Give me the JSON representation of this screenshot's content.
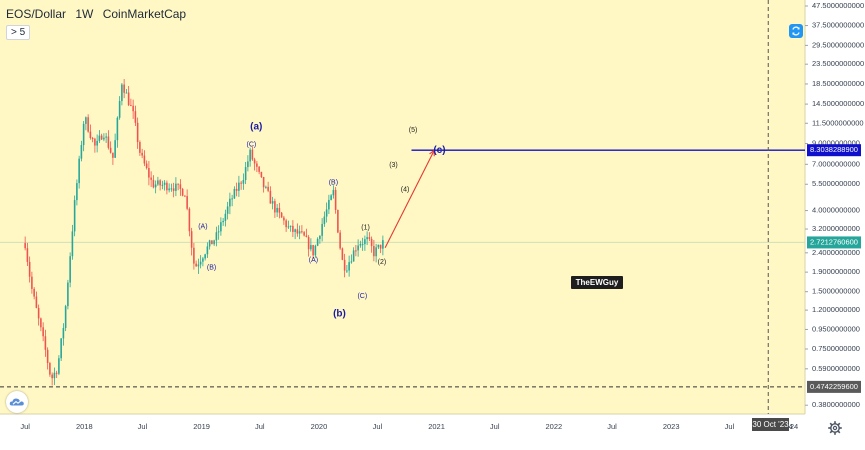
{
  "header": {
    "symbol": "EOS/Dollar",
    "interval": "1W",
    "source": "CoinMarketCap",
    "interval_control": "> 5"
  },
  "colors": {
    "background": "#fff8c4",
    "candle_up": "#26a69a",
    "candle_down": "#ef5350",
    "target_line": "#1010cc",
    "projection_arrow": "#e53935",
    "wave_label": "#1a1aa6",
    "current_price_tag": "#26a69a",
    "target_price_tag": "#1010cc",
    "low_price_tag": "#5a5a5a"
  },
  "icons": {
    "sync": "sync-icon",
    "cloud": "cloud-icon",
    "settings": "gear-icon"
  },
  "chart_data": {
    "type": "candlestick",
    "scale": "log",
    "ylim": [
      0.35,
      47.5
    ],
    "xlim": [
      "2017-06-15",
      "2024-01-15"
    ],
    "x_tick_labels": [
      "Jul",
      "2018",
      "Jul",
      "2019",
      "Jul",
      "2020",
      "Jul",
      "2021",
      "Jul",
      "2022",
      "Jul",
      "2023",
      "Jul",
      "24"
    ],
    "x_tick_dates": [
      "2017-07-01",
      "2018-01-01",
      "2018-07-01",
      "2019-01-01",
      "2019-07-01",
      "2020-01-01",
      "2020-07-01",
      "2021-01-01",
      "2021-07-01",
      "2022-01-01",
      "2022-07-01",
      "2023-01-01",
      "2023-07-01",
      "2024-01-01"
    ],
    "y_tick_labels": [
      "47.5000000000",
      "37.5000000000",
      "29.5000000000",
      "23.5000000000",
      "18.5000000000",
      "14.5000000000",
      "11.5000000000",
      "9.0000000000",
      "7.0000000000",
      "5.5000000000",
      "4.0000000000",
      "3.2000000000",
      "2.4000000000",
      "1.9000000000",
      "1.5000000000",
      "1.2000000000",
      "0.9500000000",
      "0.7500000000",
      "0.5900000000",
      "0.3800000000"
    ],
    "y_tick_values": [
      47.5,
      37.5,
      29.5,
      23.5,
      18.5,
      14.5,
      11.5,
      9.0,
      7.0,
      5.5,
      4.0,
      3.2,
      2.4,
      1.9,
      1.5,
      1.2,
      0.95,
      0.75,
      0.59,
      0.38
    ],
    "price_anchors": [
      [
        "2017-07-01",
        2.7
      ],
      [
        "2017-07-20",
        1.6
      ],
      [
        "2017-08-10",
        1.1
      ],
      [
        "2017-09-01",
        0.75
      ],
      [
        "2017-09-20",
        0.52
      ],
      [
        "2017-10-10",
        0.6
      ],
      [
        "2017-11-01",
        1.1
      ],
      [
        "2017-12-01",
        4.2
      ],
      [
        "2018-01-01",
        12.5
      ],
      [
        "2018-02-05",
        8.5
      ],
      [
        "2018-03-01",
        10.5
      ],
      [
        "2018-04-01",
        7.5
      ],
      [
        "2018-04-28",
        19.0
      ],
      [
        "2018-06-01",
        13.0
      ],
      [
        "2018-06-25",
        7.8
      ],
      [
        "2018-08-01",
        5.5
      ],
      [
        "2018-10-01",
        5.4
      ],
      [
        "2018-11-10",
        5.0
      ],
      [
        "2018-12-10",
        2.0
      ],
      [
        "2019-01-15",
        2.5
      ],
      [
        "2019-02-15",
        2.9
      ],
      [
        "2019-04-01",
        4.5
      ],
      [
        "2019-05-10",
        6.0
      ],
      [
        "2019-06-01",
        8.0
      ],
      [
        "2019-07-10",
        5.5
      ],
      [
        "2019-08-20",
        4.0
      ],
      [
        "2019-10-01",
        3.2
      ],
      [
        "2019-11-15",
        2.9
      ],
      [
        "2019-12-15",
        2.4
      ],
      [
        "2020-01-15",
        3.6
      ],
      [
        "2020-02-15",
        5.0
      ],
      [
        "2020-03-12",
        2.2
      ],
      [
        "2020-03-25",
        2.0
      ],
      [
        "2020-05-01",
        2.7
      ],
      [
        "2020-06-01",
        2.8
      ],
      [
        "2020-06-20",
        2.4
      ],
      [
        "2020-07-20",
        2.72
      ]
    ],
    "series": [
      {
        "name": "EOS/Dollar",
        "price_tags": [
          "8.3038288900",
          "2.7212760600",
          "0.4742259600"
        ]
      }
    ],
    "horizontal_lines": [
      {
        "value": 8.30382889,
        "color": "#1010cc",
        "from": "2020-10-15",
        "to_right_edge": true
      },
      {
        "value": 2.72127606,
        "color": "#cfe0b8",
        "full_width": true
      },
      {
        "value": 0.47422596,
        "color": "#333333",
        "dashed": true,
        "full_width": true
      }
    ],
    "projection": {
      "from": [
        "2020-07-25",
        2.55
      ],
      "to": [
        "2020-12-25",
        8.3
      ]
    },
    "wave_labels": [
      {
        "text": "(a)",
        "x": "2019-06-20",
        "y": 11.0,
        "bold": true,
        "size": 10
      },
      {
        "text": "(C)",
        "x": "2019-06-05",
        "y": 8.9,
        "size": 7
      },
      {
        "text": "(A)",
        "x": "2019-01-05",
        "y": 3.3,
        "size": 7
      },
      {
        "text": "(B)",
        "x": "2019-02-01",
        "y": 2.0,
        "size": 7
      },
      {
        "text": "(B)",
        "x": "2020-02-15",
        "y": 5.6,
        "size": 7
      },
      {
        "text": "(A)",
        "x": "2019-12-15",
        "y": 2.2,
        "size": 7
      },
      {
        "text": "(b)",
        "x": "2020-03-05",
        "y": 1.15,
        "bold": true,
        "size": 10
      },
      {
        "text": "(C)",
        "x": "2020-05-15",
        "y": 1.42,
        "size": 7
      },
      {
        "text": "(1)",
        "x": "2020-05-25",
        "y": 3.25,
        "size": 7
      },
      {
        "text": "(2)",
        "x": "2020-07-15",
        "y": 2.15,
        "size": 7
      },
      {
        "text": "(3)",
        "x": "2020-08-20",
        "y": 6.95,
        "size": 7
      },
      {
        "text": "(4)",
        "x": "2020-09-25",
        "y": 5.15,
        "size": 7
      },
      {
        "text": "(5)",
        "x": "2020-10-20",
        "y": 10.6,
        "size": 7
      },
      {
        "text": "(c)",
        "x": "2021-01-10",
        "y": 8.3,
        "bold": true,
        "size": 10
      }
    ],
    "watermark": "TheEWGuy",
    "cursor_date": "2023-10-30",
    "cursor_label": "30 Oct '23"
  }
}
